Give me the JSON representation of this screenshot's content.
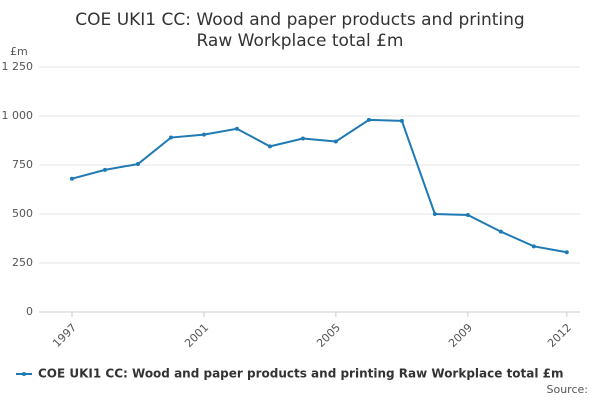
{
  "chart_data": {
    "type": "line",
    "title": "COE UKI1 CC: Wood and paper products and printing Raw Workplace total £m",
    "y_label": "£m",
    "source": "Source:",
    "x": [
      1997,
      1998,
      1999,
      2000,
      2001,
      2002,
      2003,
      2004,
      2005,
      2006,
      2007,
      2008,
      2009,
      2010,
      2011,
      2012
    ],
    "series": [
      {
        "name": "COE UKI1 CC: Wood and paper products and printing Raw Workplace total £m",
        "color": "#1f7ab4",
        "values": [
          680,
          725,
          755,
          890,
          905,
          935,
          845,
          885,
          870,
          980,
          975,
          500,
          495,
          410,
          335,
          305
        ]
      }
    ],
    "xlim": [
      1996,
      2012.4
    ],
    "xticks": [
      1997,
      2001,
      2005,
      2009,
      2012
    ],
    "ylim": [
      0,
      1250
    ],
    "yticks": [
      0,
      250,
      500,
      750,
      {
        "value": 1000,
        "label": "1 000"
      },
      {
        "value": 1250,
        "label": "1 250"
      }
    ],
    "grid": true
  }
}
